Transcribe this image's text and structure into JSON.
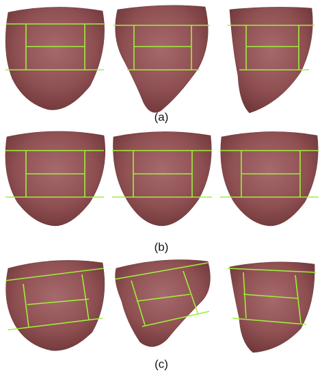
{
  "figure": {
    "rows": [
      {
        "caption": "(a)"
      },
      {
        "caption": "(b)"
      },
      {
        "caption": "(c)"
      }
    ]
  }
}
